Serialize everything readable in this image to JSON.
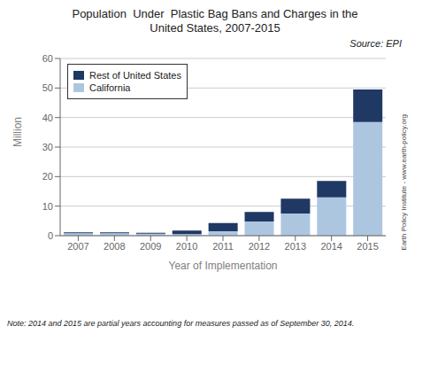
{
  "chart_data": {
    "type": "bar",
    "title": "Population  Under  Plastic Bag Bans and Charges in the",
    "subtitle": "United States, 2007-2015",
    "x_label": "Year of Implementation",
    "y_label": "Million",
    "categories": [
      "2007",
      "2008",
      "2009",
      "2010",
      "2011",
      "2012",
      "2013",
      "2014",
      "2015"
    ],
    "series": [
      {
        "name": "California",
        "color": "#adc6e0",
        "values": [
          0.8,
          0.8,
          0.7,
          0.5,
          1.5,
          4.8,
          7.5,
          13.0,
          38.5
        ]
      },
      {
        "name": "Rest of United States",
        "color": "#1f3864",
        "values": [
          0.3,
          0.3,
          0.3,
          1.2,
          2.8,
          3.2,
          5.0,
          5.5,
          11.0
        ]
      }
    ],
    "stacked": true,
    "ylim": [
      0,
      60
    ],
    "yticks": [
      0,
      10,
      20,
      30,
      40,
      50,
      60
    ],
    "grid": true,
    "legend": "upper left",
    "annotations": [
      "Source: EPI",
      "Earth Policy Institute - www.earth-policy.org",
      "Note: 2014 and 2015 are partial years accounting for measures passed as of September 30, 2014."
    ]
  }
}
